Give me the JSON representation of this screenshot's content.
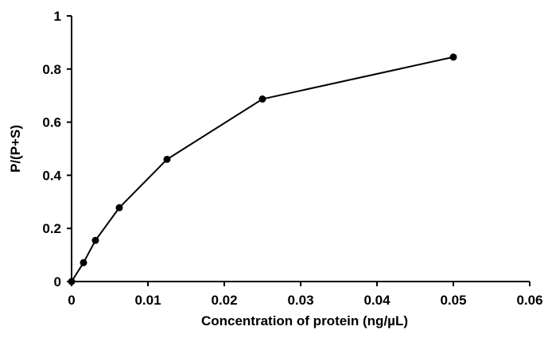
{
  "chart_data": {
    "type": "line",
    "title": "",
    "xlabel": "Concentration of protein (ng/µL)",
    "ylabel": "P/(P+S)",
    "xlim": [
      0,
      0.06
    ],
    "ylim": [
      0,
      1
    ],
    "xticks": [
      0,
      0.01,
      0.02,
      0.03,
      0.04,
      0.05,
      0.06
    ],
    "xtick_labels": [
      "0",
      "0.01",
      "0.02",
      "0.03",
      "0.04",
      "0.05",
      "0.06"
    ],
    "yticks": [
      0,
      0.2,
      0.4,
      0.6,
      0.8,
      1
    ],
    "ytick_labels": [
      "0",
      "0.2",
      "0.4",
      "0.6",
      "0.8",
      "1"
    ],
    "grid": false,
    "series": [
      {
        "x": [
          0,
          0.0015625,
          0.003125,
          0.00625,
          0.0125,
          0.025,
          0.05
        ],
        "y": [
          0.0,
          0.071,
          0.155,
          0.278,
          0.46,
          0.687,
          0.845
        ],
        "color": "#000000",
        "marker": "circle"
      }
    ]
  }
}
